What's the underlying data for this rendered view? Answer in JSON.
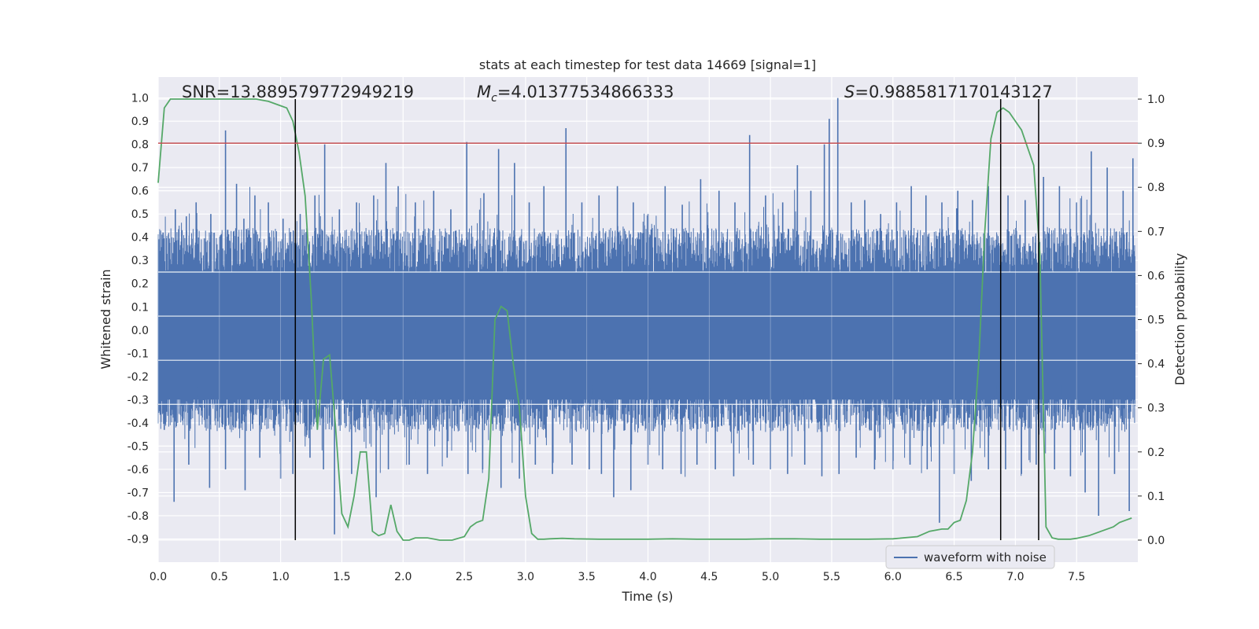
{
  "chart_data": {
    "type": "line",
    "title": "stats at each timestep for test data 14669 [signal=1]",
    "xlabel": "Time (s)",
    "ylabel": "Whitened strain",
    "ylabel_right": "Detection probability",
    "xlim": [
      0.0,
      8.0
    ],
    "ylim_left": [
      -1.0,
      1.09
    ],
    "ylim_right": [
      -0.05,
      1.05
    ],
    "x_ticks": [
      "0.0",
      "0.5",
      "1.0",
      "1.5",
      "2.0",
      "2.5",
      "3.0",
      "3.5",
      "4.0",
      "4.5",
      "5.0",
      "5.5",
      "6.0",
      "6.5",
      "7.0",
      "7.5"
    ],
    "y_ticks_left": [
      "1.0",
      "0.9",
      "0.8",
      "0.7",
      "0.6",
      "0.5",
      "0.4",
      "0.3",
      "0.2",
      "0.1",
      "0.0",
      "-0.1",
      "-0.2",
      "-0.3",
      "-0.4",
      "-0.5",
      "-0.6",
      "-0.7",
      "-0.8",
      "-0.9"
    ],
    "y_ticks_right": [
      "1.0",
      "0.9",
      "0.8",
      "0.7",
      "0.6",
      "0.5",
      "0.4",
      "0.3",
      "0.2",
      "0.1",
      "0.0"
    ],
    "annotations": {
      "snr": "SNR=13.889579772949219",
      "mc_symbol": "M",
      "mc_sub": "c",
      "mc_value": "=4.01377534866333",
      "s_symbol": "S",
      "s_value": "=0.9885817170143127"
    },
    "legend": {
      "label": "waveform with noise",
      "placement": "lower-right"
    },
    "threshold": {
      "axis": "right",
      "value": 0.9
    },
    "vertical_lines": [
      1.12,
      6.88,
      7.19
    ],
    "waveform": {
      "name": "waveform with noise",
      "color": "#4c72b0",
      "peaks": [
        [
          0.04,
          0.42
        ],
        [
          0.14,
          0.52
        ],
        [
          0.23,
          0.49
        ],
        [
          0.31,
          0.55
        ],
        [
          0.43,
          0.5
        ],
        [
          0.55,
          0.86
        ],
        [
          0.64,
          0.63
        ],
        [
          0.7,
          0.48
        ],
        [
          0.79,
          0.58
        ],
        [
          0.9,
          0.55
        ],
        [
          1.02,
          0.48
        ],
        [
          1.16,
          0.5
        ],
        [
          1.28,
          0.58
        ],
        [
          1.36,
          0.8
        ],
        [
          1.48,
          0.52
        ],
        [
          1.62,
          0.55
        ],
        [
          1.76,
          0.58
        ],
        [
          1.86,
          0.72
        ],
        [
          1.96,
          0.62
        ],
        [
          2.1,
          0.55
        ],
        [
          2.25,
          0.6
        ],
        [
          2.39,
          0.52
        ],
        [
          2.52,
          0.81
        ],
        [
          2.66,
          0.59
        ],
        [
          2.78,
          0.78
        ],
        [
          2.91,
          0.72
        ],
        [
          3.03,
          0.55
        ],
        [
          3.15,
          0.62
        ],
        [
          3.33,
          0.87
        ],
        [
          3.46,
          0.55
        ],
        [
          3.6,
          0.58
        ],
        [
          3.75,
          0.62
        ],
        [
          3.88,
          0.55
        ],
        [
          4.0,
          0.5
        ],
        [
          4.14,
          0.62
        ],
        [
          4.28,
          0.54
        ],
        [
          4.43,
          0.65
        ],
        [
          4.58,
          0.6
        ],
        [
          4.71,
          0.55
        ],
        [
          4.83,
          0.84
        ],
        [
          4.96,
          0.58
        ],
        [
          5.1,
          0.55
        ],
        [
          5.22,
          0.71
        ],
        [
          5.33,
          0.6
        ],
        [
          5.44,
          0.8
        ],
        [
          5.48,
          0.91
        ],
        [
          5.55,
          1.0
        ],
        [
          5.66,
          0.55
        ],
        [
          5.77,
          0.56
        ],
        [
          5.9,
          0.5
        ],
        [
          6.03,
          0.55
        ],
        [
          6.15,
          0.62
        ],
        [
          6.27,
          0.58
        ],
        [
          6.4,
          0.55
        ],
        [
          6.53,
          0.6
        ],
        [
          6.65,
          0.56
        ],
        [
          6.78,
          0.62
        ],
        [
          6.94,
          0.58
        ],
        [
          7.08,
          0.56
        ],
        [
          7.23,
          0.66
        ],
        [
          7.36,
          0.62
        ],
        [
          7.5,
          0.55
        ],
        [
          7.62,
          0.77
        ],
        [
          7.75,
          0.7
        ],
        [
          7.88,
          0.6
        ],
        [
          7.96,
          0.74
        ]
      ],
      "troughs": [
        [
          0.05,
          -0.43
        ],
        [
          0.13,
          -0.74
        ],
        [
          0.25,
          -0.58
        ],
        [
          0.42,
          -0.68
        ],
        [
          0.55,
          -0.6
        ],
        [
          0.71,
          -0.69
        ],
        [
          0.83,
          -0.55
        ],
        [
          1.0,
          -0.64
        ],
        [
          1.1,
          -0.62
        ],
        [
          1.24,
          -0.55
        ],
        [
          1.35,
          -0.6
        ],
        [
          1.44,
          -0.88
        ],
        [
          1.58,
          -0.62
        ],
        [
          1.78,
          -0.72
        ],
        [
          1.88,
          -0.6
        ],
        [
          2.05,
          -0.58
        ],
        [
          2.2,
          -0.62
        ],
        [
          2.36,
          -0.55
        ],
        [
          2.53,
          -0.62
        ],
        [
          2.65,
          -0.6
        ],
        [
          2.8,
          -0.68
        ],
        [
          2.95,
          -0.64
        ],
        [
          3.08,
          -0.58
        ],
        [
          3.22,
          -0.62
        ],
        [
          3.38,
          -0.58
        ],
        [
          3.52,
          -0.6
        ],
        [
          3.62,
          -0.62
        ],
        [
          3.72,
          -0.72
        ],
        [
          3.86,
          -0.69
        ],
        [
          4.0,
          -0.58
        ],
        [
          4.12,
          -0.6
        ],
        [
          4.27,
          -0.62
        ],
        [
          4.4,
          -0.58
        ],
        [
          4.55,
          -0.6
        ],
        [
          4.7,
          -0.63
        ],
        [
          4.86,
          -0.58
        ],
        [
          5.0,
          -0.6
        ],
        [
          5.14,
          -0.62
        ],
        [
          5.28,
          -0.58
        ],
        [
          5.42,
          -0.63
        ],
        [
          5.56,
          -0.62
        ],
        [
          5.7,
          -0.55
        ],
        [
          5.85,
          -0.6
        ],
        [
          6.0,
          -0.6
        ],
        [
          6.14,
          -0.58
        ],
        [
          6.28,
          -0.6
        ],
        [
          6.38,
          -0.83
        ],
        [
          6.5,
          -0.62
        ],
        [
          6.64,
          -0.65
        ],
        [
          6.78,
          -0.6
        ],
        [
          6.92,
          -0.6
        ],
        [
          7.05,
          -0.62
        ],
        [
          7.17,
          -0.58
        ],
        [
          7.32,
          -0.6
        ],
        [
          7.45,
          -0.63
        ],
        [
          7.57,
          -0.7
        ],
        [
          7.68,
          -0.8
        ],
        [
          7.81,
          -0.62
        ],
        [
          7.93,
          -0.78
        ]
      ]
    },
    "probability": {
      "name": "detection probability",
      "color": "#55a868",
      "x": [
        0.0,
        0.05,
        0.1,
        0.15,
        0.2,
        0.3,
        0.4,
        0.5,
        0.6,
        0.7,
        0.8,
        0.9,
        1.0,
        1.05,
        1.1,
        1.15,
        1.2,
        1.25,
        1.3,
        1.35,
        1.4,
        1.45,
        1.5,
        1.55,
        1.6,
        1.65,
        1.7,
        1.75,
        1.8,
        1.85,
        1.9,
        1.95,
        2.0,
        2.05,
        2.1,
        2.15,
        2.2,
        2.3,
        2.4,
        2.5,
        2.55,
        2.6,
        2.65,
        2.7,
        2.75,
        2.8,
        2.85,
        2.9,
        2.95,
        3.0,
        3.05,
        3.1,
        3.15,
        3.2,
        3.3,
        3.4,
        3.6,
        3.8,
        4.0,
        4.2,
        4.4,
        4.6,
        4.8,
        5.0,
        5.2,
        5.4,
        5.6,
        5.8,
        6.0,
        6.2,
        6.3,
        6.4,
        6.45,
        6.5,
        6.55,
        6.6,
        6.65,
        6.7,
        6.75,
        6.8,
        6.85,
        6.9,
        6.95,
        7.0,
        7.05,
        7.1,
        7.15,
        7.2,
        7.25,
        7.3,
        7.35,
        7.4,
        7.45,
        7.5,
        7.6,
        7.7,
        7.8,
        7.85,
        7.9,
        7.95
      ],
      "values": [
        0.81,
        0.98,
        1.0,
        1.0,
        1.0,
        1.0,
        1.0,
        1.0,
        1.0,
        1.0,
        1.0,
        0.995,
        0.985,
        0.98,
        0.95,
        0.88,
        0.78,
        0.55,
        0.25,
        0.41,
        0.42,
        0.25,
        0.06,
        0.03,
        0.1,
        0.2,
        0.2,
        0.02,
        0.01,
        0.015,
        0.08,
        0.02,
        0.0,
        0.0,
        0.005,
        0.005,
        0.005,
        0.0,
        0.0,
        0.008,
        0.03,
        0.04,
        0.045,
        0.14,
        0.5,
        0.53,
        0.52,
        0.4,
        0.3,
        0.1,
        0.015,
        0.002,
        0.002,
        0.003,
        0.004,
        0.003,
        0.002,
        0.002,
        0.002,
        0.003,
        0.002,
        0.002,
        0.002,
        0.003,
        0.003,
        0.002,
        0.002,
        0.002,
        0.003,
        0.008,
        0.02,
        0.025,
        0.025,
        0.04,
        0.045,
        0.09,
        0.2,
        0.4,
        0.7,
        0.91,
        0.97,
        0.98,
        0.97,
        0.95,
        0.93,
        0.89,
        0.85,
        0.65,
        0.03,
        0.005,
        0.002,
        0.002,
        0.002,
        0.004,
        0.01,
        0.02,
        0.03,
        0.04,
        0.045,
        0.05
      ]
    }
  }
}
